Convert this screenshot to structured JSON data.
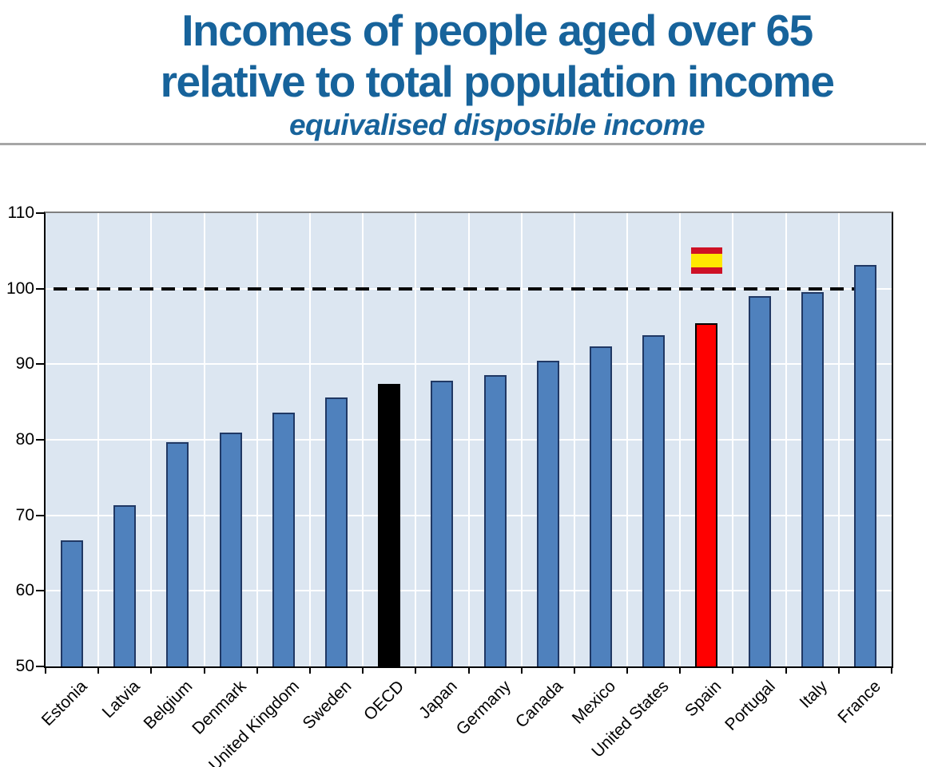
{
  "page": {
    "background": "#FFFFFF"
  },
  "header": {
    "title_line1": "Incomes of people aged over 65",
    "title_line2": "relative to total population income",
    "subtitle": "equivalised disposible income",
    "title_color": "#17639B",
    "divider_color": "#A6A6A6"
  },
  "chart_data": {
    "type": "bar",
    "title": "Incomes of people aged over 65 relative to total population income",
    "subtitle": "equivalised disposible income",
    "categories": [
      "Estonia",
      "Latvia",
      "Belgium",
      "Denmark",
      "United Kingdom",
      "Sweden",
      "OECD",
      "Japan",
      "Germany",
      "Canada",
      "Mexico",
      "United States",
      "Spain",
      "Portugal",
      "Italy",
      "France"
    ],
    "values": [
      66.7,
      71.3,
      79.7,
      81.0,
      83.6,
      85.6,
      87.4,
      87.8,
      88.6,
      90.5,
      92.4,
      93.8,
      95.4,
      99.0,
      99.5,
      103.1
    ],
    "xlabel": "",
    "ylabel": "",
    "ylim": [
      50,
      110
    ],
    "ytick_step": 10,
    "yticks": [
      50,
      60,
      70,
      80,
      90,
      100,
      110
    ],
    "reference_line_y": 100,
    "grid": "white horizontal and vertical gridlines on shaded plot area",
    "legend": "none",
    "colors": {
      "default_bar": "#4F81BD",
      "bar_border": "#203864",
      "plot_background": "#DCE6F1",
      "gridline": "#FFFFFF",
      "reference_line": "#000000",
      "axis": "#000000",
      "plot_border_top": "#7F7F7F"
    },
    "highlight_bars": {
      "OECD": {
        "fill": "#000000",
        "border": "#000000"
      },
      "Spain": {
        "fill": "#FF0000",
        "border": "#000000"
      }
    },
    "flag_marker": {
      "country": "Spain",
      "type": "spain-flag",
      "red": "#CE1126",
      "yellow": "#FFE800"
    }
  }
}
